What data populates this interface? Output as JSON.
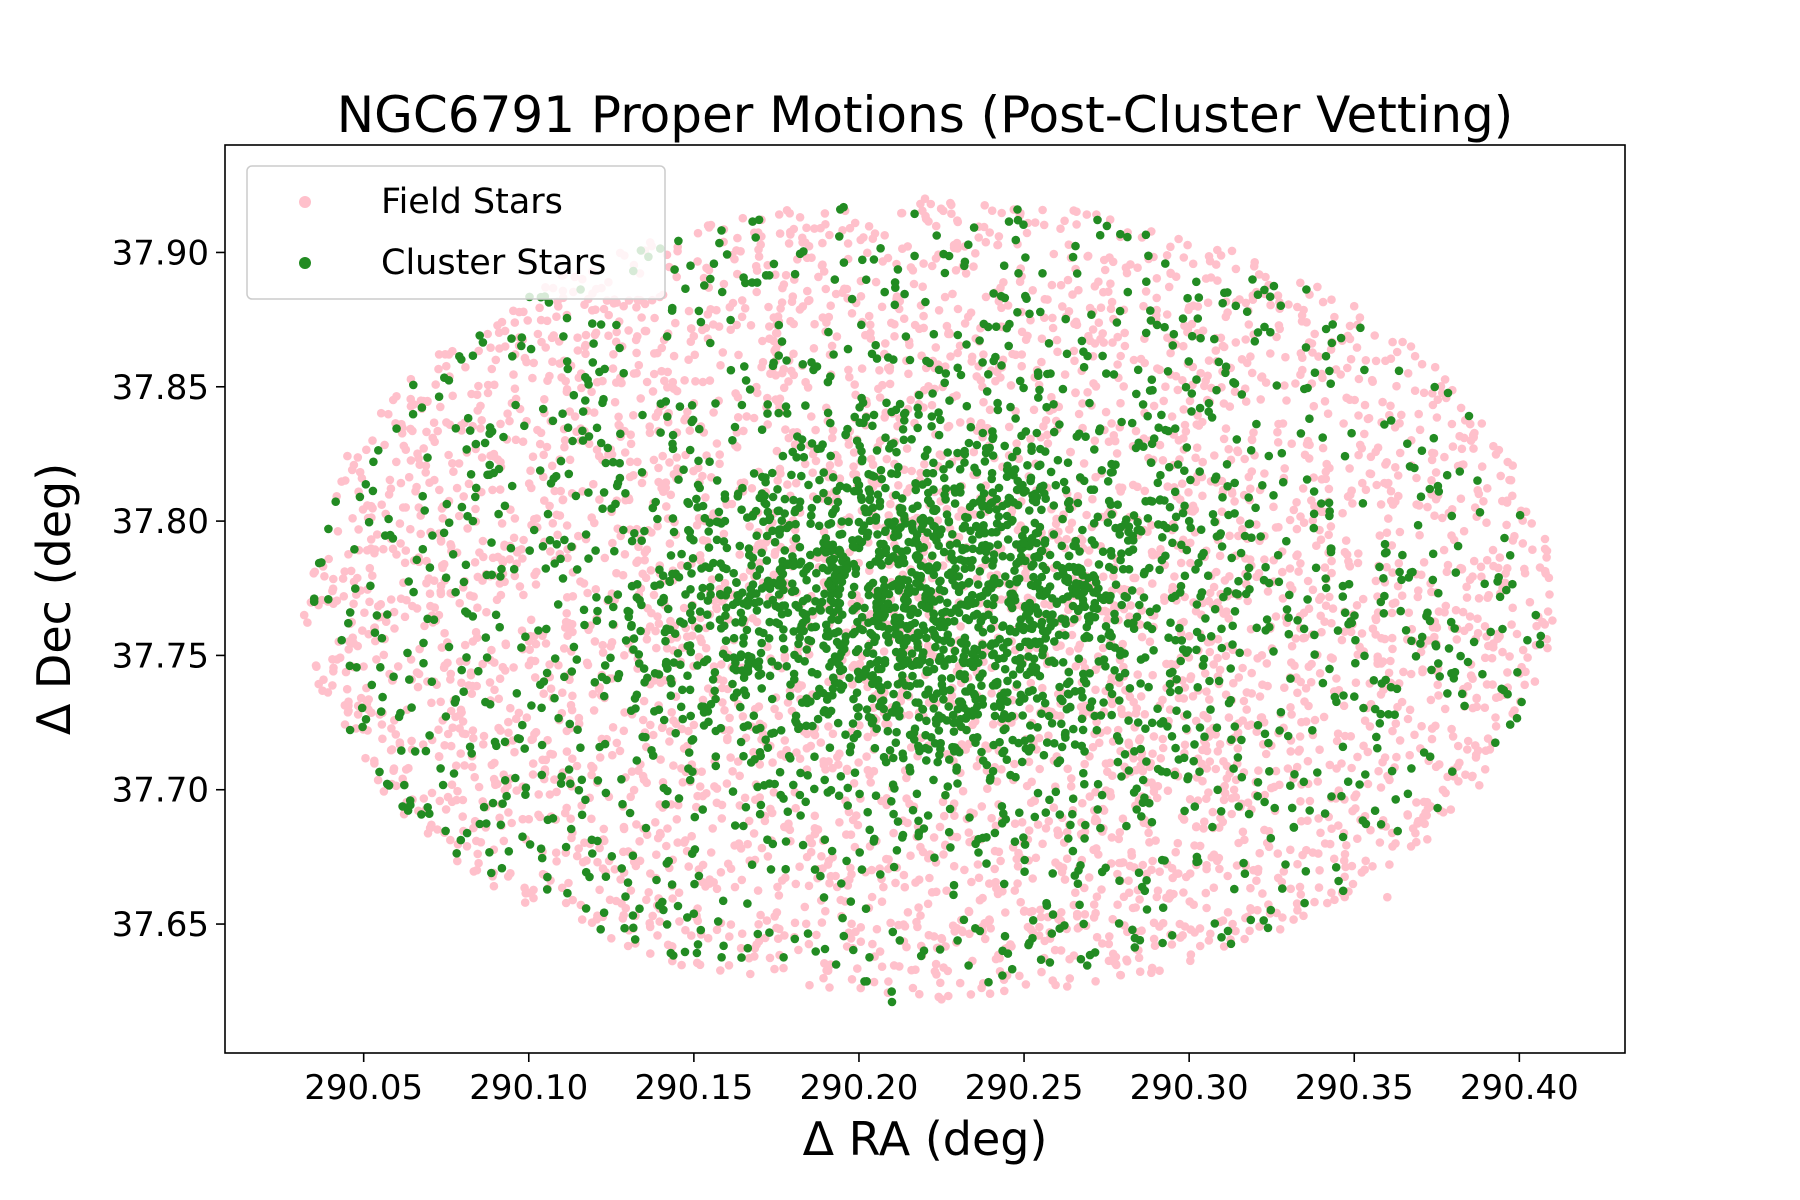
{
  "chart_data": {
    "type": "scatter",
    "title": "NGC6791 Proper Motions (Post-Cluster Vetting)",
    "xlabel": "Δ RA (deg)",
    "ylabel": "Δ Dec (deg)",
    "xlim": [
      290.008,
      290.432
    ],
    "ylim": [
      37.602,
      37.94
    ],
    "x_ticks": [
      290.05,
      290.1,
      290.15,
      290.2,
      290.25,
      290.3,
      290.35,
      290.4
    ],
    "y_ticks": [
      37.65,
      37.7,
      37.75,
      37.8,
      37.85,
      37.9
    ],
    "x_tick_labels": [
      "290.05",
      "290.10",
      "290.15",
      "290.20",
      "290.25",
      "290.30",
      "290.35",
      "290.40"
    ],
    "y_tick_labels": [
      "37.65",
      "37.70",
      "37.75",
      "37.80",
      "37.85",
      "37.90"
    ],
    "grid": false,
    "legend_position": "top-left",
    "field_center": [
      290.221,
      37.771
    ],
    "field_semi_axes": [
      0.189,
      0.149
    ],
    "series": [
      {
        "name": "Field Stars",
        "color": "#ffc0cb",
        "approx_count": 4200,
        "distribution": "uniform over the elliptical field"
      },
      {
        "name": "Cluster Stars",
        "color": "#228b22",
        "approx_count": 3000,
        "distribution": "concentrated toward the cluster center"
      }
    ],
    "sample_points": {
      "Cluster Stars": [
        [
          290.222,
          37.771
        ],
        [
          290.205,
          37.785
        ],
        [
          290.24,
          37.76
        ],
        [
          290.262,
          37.78
        ],
        [
          290.16,
          37.79
        ],
        [
          290.3,
          37.8
        ],
        [
          290.12,
          37.74
        ],
        [
          290.33,
          37.72
        ],
        [
          290.21,
          37.621
        ],
        [
          290.248,
          37.916
        ],
        [
          290.035,
          37.77
        ],
        [
          290.405,
          37.765
        ]
      ],
      "Field Stars": [
        [
          290.032,
          37.765
        ],
        [
          290.41,
          37.763
        ],
        [
          290.22,
          37.92
        ],
        [
          290.225,
          37.622
        ],
        [
          290.09,
          37.86
        ],
        [
          290.35,
          37.88
        ],
        [
          290.08,
          37.69
        ],
        [
          290.36,
          37.66
        ]
      ]
    }
  }
}
